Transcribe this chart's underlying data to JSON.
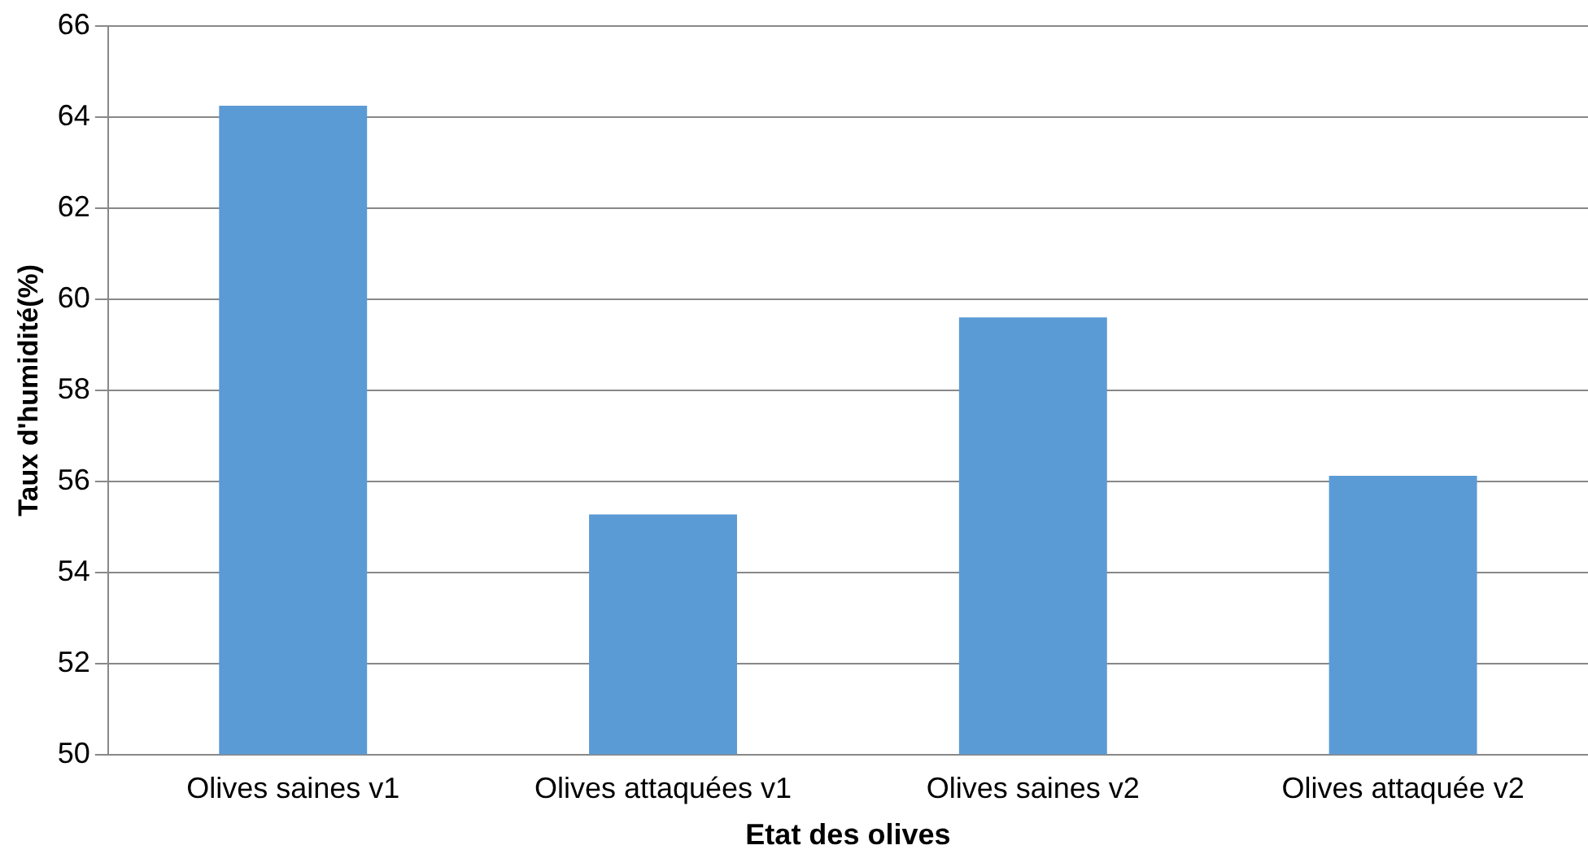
{
  "chart_data": {
    "type": "bar",
    "xlabel": "Etat des olives",
    "ylabel": "Taux d'humidité(%)",
    "categories": [
      "Olives saines v1",
      "Olives attaquées v1",
      "Olives saines v2",
      "Olives attaquée v2"
    ],
    "values": [
      64.25,
      55.27,
      59.6,
      56.12
    ],
    "color": "#5b9bd5",
    "ylim": [
      50,
      66
    ],
    "yticks": [
      50,
      52,
      54,
      56,
      58,
      60,
      62,
      64,
      66
    ],
    "grid": "y",
    "legend": false
  }
}
